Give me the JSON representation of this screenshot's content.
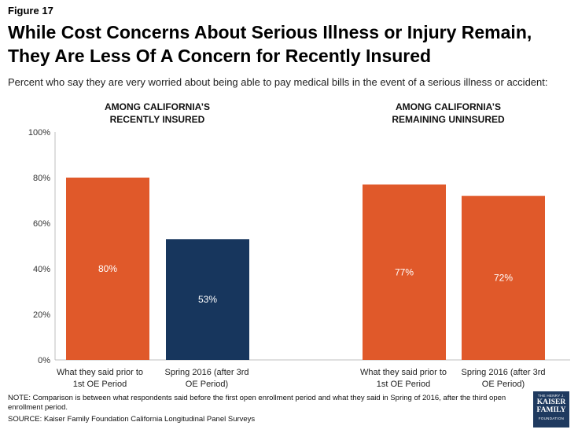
{
  "figure_label": "Figure 17",
  "title": "While Cost Concerns About Serious Illness or Injury Remain, They Are Less Of A Concern for Recently Insured",
  "subtitle": "Percent who say they are very worried about being able to pay medical bills in the event of a serious illness or accident:",
  "note": "NOTE: Comparison is between what respondents said before the first open enrollment period and what they said in Spring of 2016, after the third open enrollment period.",
  "source": "SOURCE: Kaiser Family Foundation California Longitudinal Panel Surveys",
  "logo": {
    "line1": "THE HENRY J.",
    "line2": "KAISER",
    "line3": "FAMILY",
    "line4": "FOUNDATION"
  },
  "colors": {
    "orange": "#e0592a",
    "navy": "#17365d",
    "axis": "#bfbfbf"
  },
  "chart_data": {
    "type": "bar",
    "ylim": [
      0,
      100
    ],
    "yticks": [
      0,
      20,
      40,
      60,
      80,
      100
    ],
    "yticklabels": [
      "0%",
      "20%",
      "40%",
      "60%",
      "80%",
      "100%"
    ],
    "groups": [
      {
        "header": "AMONG CALIFORNIA'S RECENTLY INSURED",
        "header_line1": "AMONG CALIFORNIA’S",
        "header_line2": "RECENTLY INSURED",
        "bars": [
          {
            "category_line1": "What they said prior to",
            "category_line2": "1st OE Period",
            "value": 80,
            "label": "80%",
            "color": "#e0592a"
          },
          {
            "category_line1": "Spring 2016 (after 3rd",
            "category_line2": "OE Period)",
            "value": 53,
            "label": "53%",
            "color": "#17365d"
          }
        ]
      },
      {
        "header": "AMONG CALIFORNIA'S REMAINING UNINSURED",
        "header_line1": "AMONG CALIFORNIA’S",
        "header_line2": "REMAINING UNINSURED",
        "bars": [
          {
            "category_line1": "What they said prior to",
            "category_line2": "1st OE Period",
            "value": 77,
            "label": "77%",
            "color": "#e0592a"
          },
          {
            "category_line1": "Spring 2016 (after 3rd",
            "category_line2": "OE Period)",
            "value": 72,
            "label": "72%",
            "color": "#e0592a"
          }
        ]
      }
    ]
  }
}
